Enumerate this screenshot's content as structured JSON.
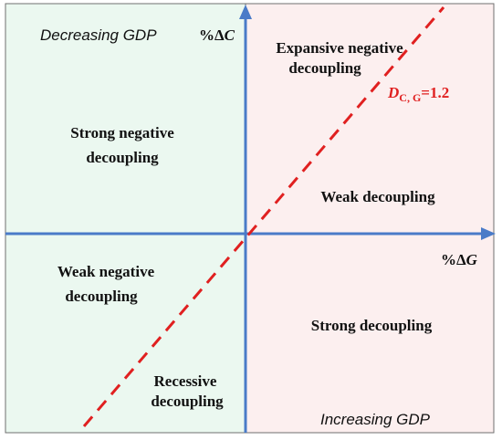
{
  "regions": {
    "left_title": "Decreasing GDP",
    "right_title": "Increasing GDP"
  },
  "axes": {
    "y_label_prefix": "%Δ",
    "y_label_var": "C",
    "x_label_prefix": "%Δ",
    "x_label_var": "G"
  },
  "threshold_line": {
    "label_base": "D",
    "label_sub": "C, G",
    "label_value": "=1.2"
  },
  "zones": {
    "expansive_negative_line1": "Expansive negative",
    "expansive_negative_line2": "decoupling",
    "strong_negative_line1": "Strong negative",
    "strong_negative_line2": "decoupling",
    "weak_decoupling": "Weak decoupling",
    "weak_negative_line1": "Weak negative",
    "weak_negative_line2": "decoupling",
    "strong_decoupling": "Strong decoupling",
    "recessive_line1": "Recessive",
    "recessive_line2": "decoupling"
  },
  "colors": {
    "left_bg": "#ebf8f0",
    "right_bg": "#fcefef",
    "axis": "#4a7bc8",
    "threshold": "#e02020"
  }
}
